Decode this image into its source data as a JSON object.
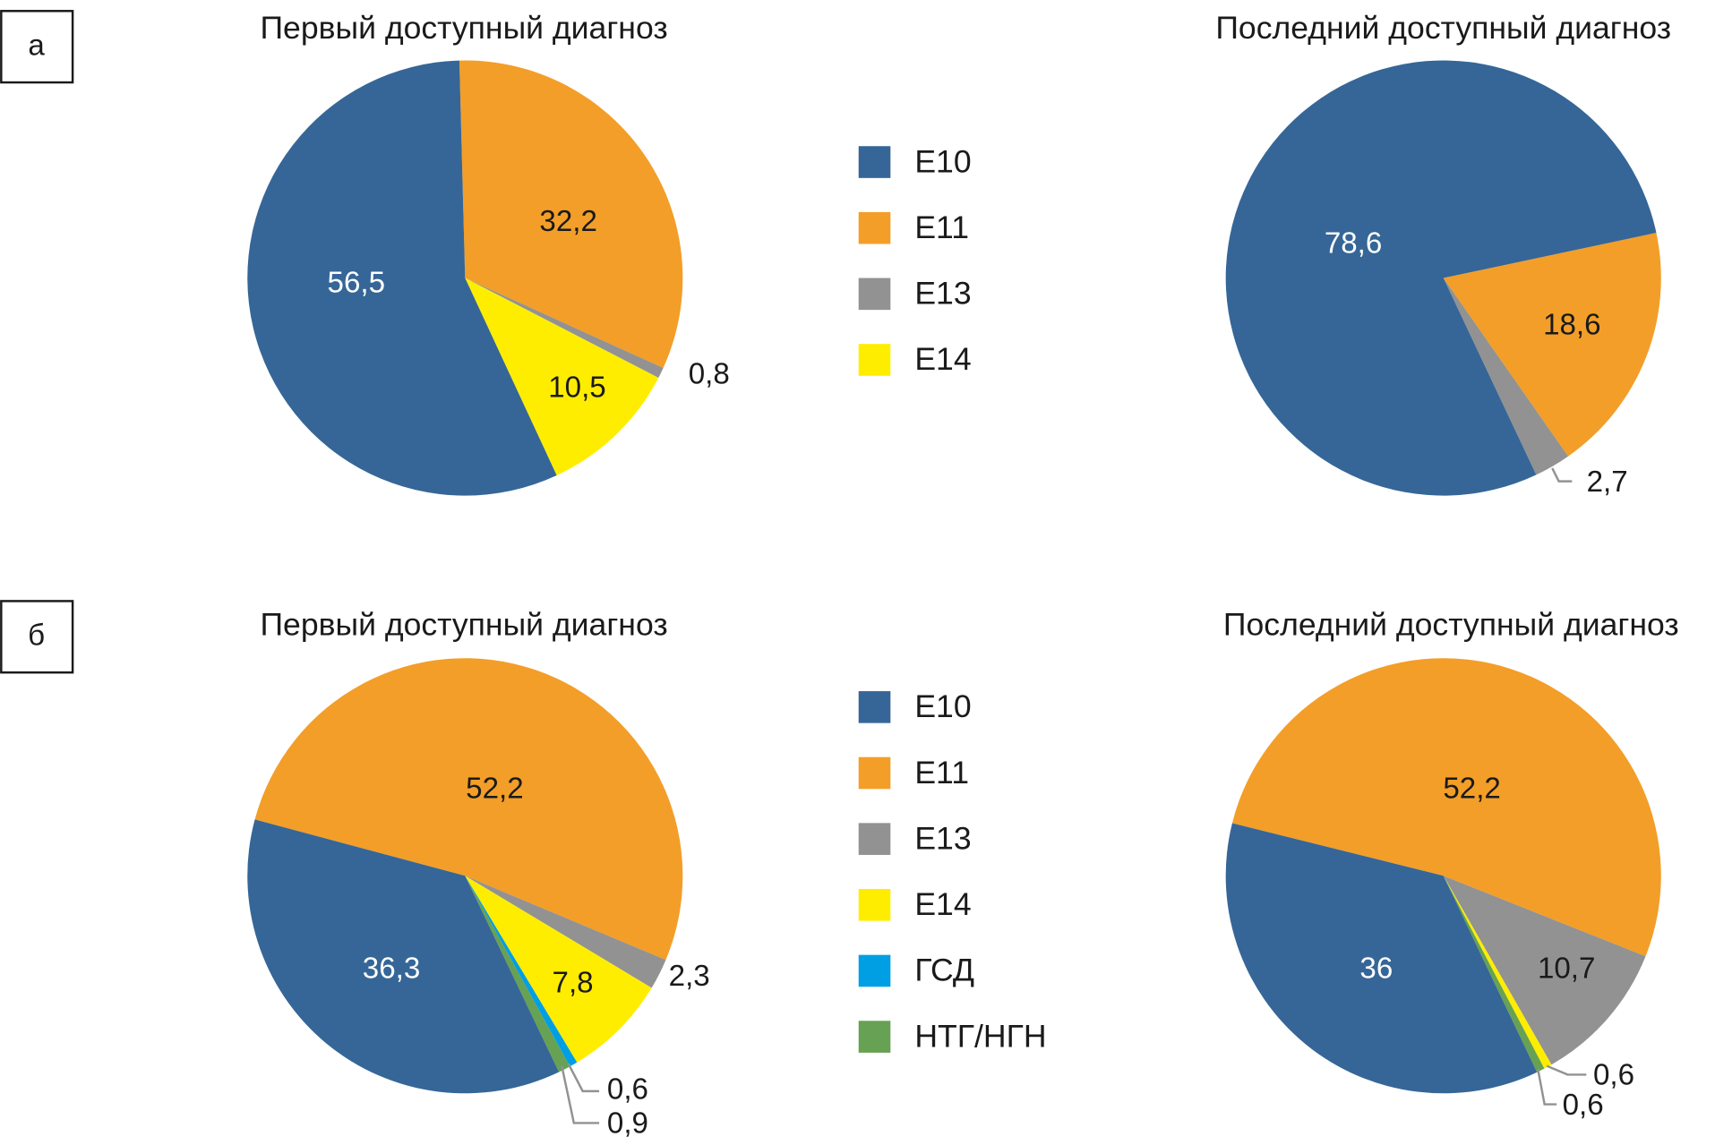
{
  "colors": {
    "E10": "#356697",
    "E11": "#F39E28",
    "E13": "#929292",
    "E14": "#FFED00",
    "ГСД": "#009FE3",
    "НТГ/НГН": "#67A153"
  },
  "panels": [
    {
      "label": "а",
      "legend": [
        "E10",
        "E11",
        "E13",
        "E14"
      ]
    },
    {
      "label": "б",
      "legend": [
        "E10",
        "E11",
        "E13",
        "E14",
        "ГСД",
        "НТГ/НГН"
      ]
    }
  ],
  "chart_data": [
    {
      "type": "pie",
      "panel": "а",
      "title": "Первый доступный диагноз",
      "slices": [
        {
          "category": "E11",
          "value": 32.2,
          "label": "32,2"
        },
        {
          "category": "E13",
          "value": 0.8,
          "label": "0,8"
        },
        {
          "category": "E14",
          "value": 10.5,
          "label": "10,5"
        },
        {
          "category": "E10",
          "value": 56.5,
          "label": "56,5"
        }
      ]
    },
    {
      "type": "pie",
      "panel": "а",
      "title": "Последний доступный диагноз",
      "slices": [
        {
          "category": "E11",
          "value": 18.6,
          "label": "18,6"
        },
        {
          "category": "E13",
          "value": 2.7,
          "label": "2,7"
        },
        {
          "category": "E10",
          "value": 78.6,
          "label": "78,6"
        }
      ]
    },
    {
      "type": "pie",
      "panel": "б",
      "title": "Первый доступный диагноз",
      "slices": [
        {
          "category": "E11",
          "value": 52.2,
          "label": "52,2"
        },
        {
          "category": "E13",
          "value": 2.3,
          "label": "2,3"
        },
        {
          "category": "E14",
          "value": 7.8,
          "label": "7,8"
        },
        {
          "category": "ГСД",
          "value": 0.6,
          "label": "0,6"
        },
        {
          "category": "НТГ/НГН",
          "value": 0.9,
          "label": "0,9"
        },
        {
          "category": "E10",
          "value": 36.3,
          "label": "36,3"
        }
      ]
    },
    {
      "type": "pie",
      "panel": "б",
      "title": "Последний доступный диагноз",
      "slices": [
        {
          "category": "E11",
          "value": 52.2,
          "label": "52,2"
        },
        {
          "category": "E13",
          "value": 10.7,
          "label": "10,7"
        },
        {
          "category": "E14",
          "value": 0.6,
          "label": "0,6"
        },
        {
          "category": "НТГ/НГН",
          "value": 0.6,
          "label": "0,6"
        },
        {
          "category": "E10",
          "value": 36,
          "label": "36"
        }
      ]
    }
  ]
}
